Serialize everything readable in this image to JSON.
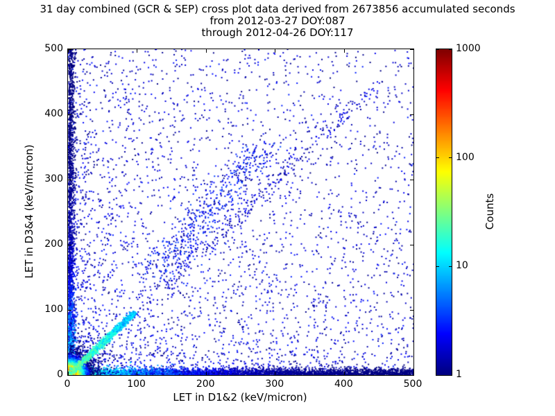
{
  "chart_data": {
    "type": "scatter",
    "title": "31 day combined (GCR & SEP) cross plot data derived from 2673856 accumulated seconds",
    "subtitle_from": "from 2012-03-27 DOY:087",
    "subtitle_through": "through 2012-04-26 DOY:117",
    "accumulated_seconds": 2673856,
    "date_from": "2012-03-27",
    "doy_from": "087",
    "date_through": "2012-04-26",
    "doy_through": "117",
    "xlabel": "LET in D1&2 (keV/micron)",
    "ylabel": "LET in D3&4 (keV/micron)",
    "xlim": [
      0,
      500
    ],
    "ylim": [
      0,
      500
    ],
    "xticks": [
      0,
      100,
      200,
      300,
      400,
      500
    ],
    "yticks": [
      0,
      100,
      200,
      300,
      400,
      500
    ],
    "grid": false,
    "colorbar": {
      "label": "Counts",
      "scale": "log",
      "range": [
        1,
        1000
      ],
      "ticks": [
        1,
        10,
        100,
        1000
      ],
      "colormap": "jet"
    },
    "point_color_low": "#000080",
    "seed": 20120327,
    "clusters": [
      {
        "name": "background-uniform",
        "kind": "uniform",
        "count": 1300,
        "cmin": 1,
        "cmax": 2,
        "size": 2
      },
      {
        "name": "background-bias",
        "kind": "power",
        "count": 2600,
        "pow_x": 2.2,
        "pow_y": 2.2,
        "cmin": 1,
        "cmax": 3,
        "size": 2
      },
      {
        "name": "bottom-edge-band",
        "kind": "edge-x",
        "count": 3400,
        "pow": 1.35,
        "sigma": 5,
        "cmax": 40,
        "falloff": 70,
        "size": 2
      },
      {
        "name": "left-edge-band",
        "kind": "edge-y",
        "count": 1900,
        "pow": 1.6,
        "sigma": 4.5,
        "cmax": 28,
        "falloff": 60,
        "size": 2
      },
      {
        "name": "origin-hotspot",
        "kind": "radial",
        "count": 4200,
        "scale": 11,
        "cmax": 900,
        "cfall": 5,
        "size": 2
      },
      {
        "name": "main-diagonal-track",
        "kind": "line",
        "count": 1400,
        "x0": 1,
        "y0": 1,
        "x1": 95,
        "y1": 95,
        "jitter": 2.2,
        "cmax": 35,
        "cmin": 3,
        "decay": 1.2,
        "size": 2
      },
      {
        "name": "diagonal-sparse-track",
        "kind": "line",
        "count": 260,
        "x0": 95,
        "y0": 95,
        "x1": 440,
        "y1": 440,
        "jitter": 7,
        "cmax": 2.5,
        "cmin": 1,
        "decay": 0,
        "size": 2
      },
      {
        "name": "mid-diagonal-cloud",
        "kind": "line",
        "count": 430,
        "x0": 130,
        "y0": 160,
        "x1": 285,
        "y1": 350,
        "jitter": 14,
        "cmax": 4,
        "cmin": 1,
        "decay": 0,
        "size": 2
      }
    ]
  }
}
